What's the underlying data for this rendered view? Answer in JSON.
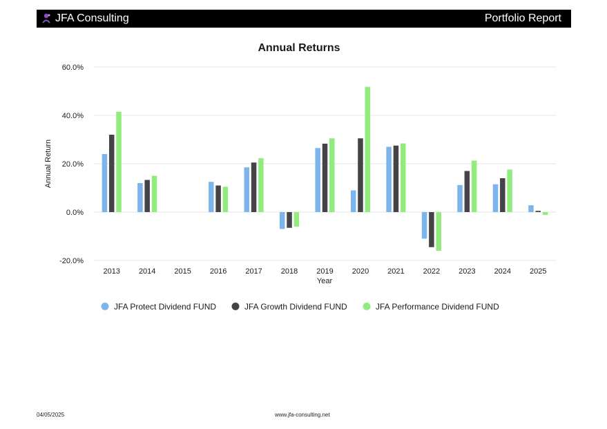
{
  "header": {
    "brand": "JFA Consulting",
    "report_title": "Portfolio Report",
    "logo_icon": "jfa-logo-icon"
  },
  "footer": {
    "date": "04/05/2025",
    "url": "www.jfa-consulting.net"
  },
  "chart_data": {
    "type": "bar",
    "title": "Annual Returns",
    "xlabel": "Year",
    "ylabel": "Annual Return",
    "ylim": [
      -20,
      60
    ],
    "yticks": [
      -20,
      0,
      20,
      40,
      60
    ],
    "ytick_labels": [
      "-20.0%",
      "0.0%",
      "20.0%",
      "40.0%",
      "60.0%"
    ],
    "grid": true,
    "legend_position": "bottom",
    "categories": [
      "2013",
      "2014",
      "2015",
      "2016",
      "2017",
      "2018",
      "2019",
      "2020",
      "2021",
      "2022",
      "2023",
      "2024",
      "2025"
    ],
    "series": [
      {
        "name": "JFA Protect Dividend FUND",
        "color": "#7cb5ec",
        "values": [
          24,
          12,
          null,
          12.5,
          18.5,
          -7,
          26.5,
          9,
          27,
          -11,
          11.2,
          11.5,
          2.8
        ]
      },
      {
        "name": "JFA Growth Dividend FUND",
        "color": "#434348",
        "values": [
          32,
          13.3,
          null,
          11,
          20.5,
          -6.5,
          28.3,
          30.5,
          27.5,
          -14.5,
          17,
          14,
          0.5
        ]
      },
      {
        "name": "JFA Performance Dividend FUND",
        "color": "#90ed7d",
        "values": [
          41.5,
          15,
          null,
          10.5,
          22.3,
          -6,
          30.5,
          51.8,
          28.4,
          -16,
          21.3,
          17.6,
          -1.2
        ]
      }
    ]
  }
}
